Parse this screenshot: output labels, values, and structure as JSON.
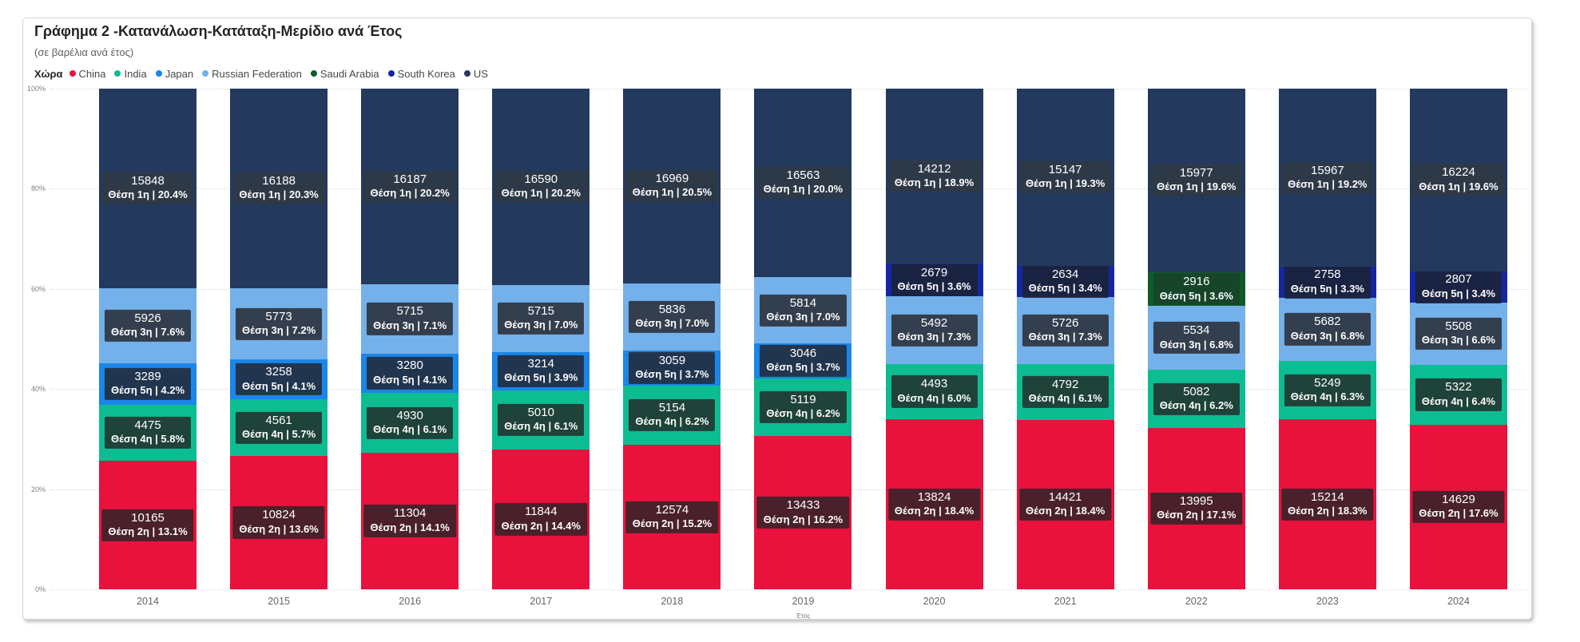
{
  "card": {
    "title": "Γράφημα 2 -Κατανάλωση-Κατάταξη-Μερίδιο ανά Έτος",
    "subtitle": "(σε βαρέλια ανά έτος)"
  },
  "legend": {
    "title": "Χώρα",
    "items": [
      {
        "name": "China",
        "color": "#E9123D"
      },
      {
        "name": "India",
        "color": "#0DBD92"
      },
      {
        "name": "Japan",
        "color": "#1A86E8"
      },
      {
        "name": "Russian Federation",
        "color": "#74B1EA"
      },
      {
        "name": "Saudi Arabia",
        "color": "#0E5C2A"
      },
      {
        "name": "South Korea",
        "color": "#1527A0"
      },
      {
        "name": "US",
        "color": "#233A5E"
      }
    ]
  },
  "series_styles": {
    "China": {
      "color": "#E9123D",
      "label_bg": "#4A202B"
    },
    "India": {
      "color": "#0DBD92",
      "label_bg": "#1F4239"
    },
    "Japan": {
      "color": "#1A86E8",
      "label_bg": "#21354F"
    },
    "Russian Federation": {
      "color": "#74B1EA",
      "label_bg": "#333E4E"
    },
    "Saudi Arabia": {
      "color": "#0E5C2A",
      "label_bg": "#17452A"
    },
    "South Korea": {
      "color": "#1527A0",
      "label_bg": "#1A2342"
    },
    "US": {
      "color": "#233A5E",
      "label_bg": "#2E3948"
    }
  },
  "axes": {
    "y_ticks": [
      {
        "label": "100%",
        "value": 100
      },
      {
        "label": "80%",
        "value": 80
      },
      {
        "label": "60%",
        "value": 60
      },
      {
        "label": "40%",
        "value": 40
      },
      {
        "label": "20%",
        "value": 20
      },
      {
        "label": "0%",
        "value": 0
      }
    ],
    "x_title": "Έτος"
  },
  "chart_data": {
    "type": "bar",
    "variant": "100%-stacked-column",
    "title": "Γράφημα 2 -Κατανάλωση-Κατάταξη-Μερίδιο ανά Έτος",
    "units_note": "σε βαρέλια ανά έτος",
    "legend_position": "top",
    "grid": "dotted-horizontal",
    "ylim": [
      "0%",
      "100%"
    ],
    "xlabel": "Έτος",
    "categories": [
      "2014",
      "2015",
      "2016",
      "2017",
      "2018",
      "2019",
      "2020",
      "2021",
      "2022",
      "2023",
      "2024"
    ],
    "segment_order": "bottom-to-top",
    "bars": [
      {
        "year": "2014",
        "segments": [
          {
            "country": "China",
            "value": 10165,
            "share": 13.1,
            "rank": "2η",
            "rank_share": "Θέση 2η | 13.1%"
          },
          {
            "country": "India",
            "value": 4475,
            "share": 5.8,
            "rank": "4η",
            "rank_share": "Θέση 4η | 5.8%"
          },
          {
            "country": "Japan",
            "value": 3289,
            "share": 4.2,
            "rank": "5η",
            "rank_share": "Θέση 5η | 4.2%"
          },
          {
            "country": "Russian Federation",
            "value": 5926,
            "share": 7.6,
            "rank": "3η",
            "rank_share": "Θέση 3η | 7.6%"
          },
          {
            "country": "US",
            "value": 15848,
            "share": 20.4,
            "rank": "1η",
            "rank_share": "Θέση 1η | 20.4%"
          }
        ]
      },
      {
        "year": "2015",
        "segments": [
          {
            "country": "China",
            "value": 10824,
            "share": 13.6,
            "rank": "2η",
            "rank_share": "Θέση 2η | 13.6%"
          },
          {
            "country": "India",
            "value": 4561,
            "share": 5.7,
            "rank": "4η",
            "rank_share": "Θέση 4η | 5.7%"
          },
          {
            "country": "Japan",
            "value": 3258,
            "share": 4.1,
            "rank": "5η",
            "rank_share": "Θέση 5η | 4.1%"
          },
          {
            "country": "Russian Federation",
            "value": 5773,
            "share": 7.2,
            "rank": "3η",
            "rank_share": "Θέση 3η | 7.2%"
          },
          {
            "country": "US",
            "value": 16188,
            "share": 20.3,
            "rank": "1η",
            "rank_share": "Θέση 1η | 20.3%"
          }
        ]
      },
      {
        "year": "2016",
        "segments": [
          {
            "country": "China",
            "value": 11304,
            "share": 14.1,
            "rank": "2η",
            "rank_share": "Θέση 2η | 14.1%"
          },
          {
            "country": "India",
            "value": 4930,
            "share": 6.1,
            "rank": "4η",
            "rank_share": "Θέση 4η | 6.1%"
          },
          {
            "country": "Japan",
            "value": 3280,
            "share": 4.1,
            "rank": "5η",
            "rank_share": "Θέση 5η | 4.1%"
          },
          {
            "country": "Russian Federation",
            "value": 5715,
            "share": 7.1,
            "rank": "3η",
            "rank_share": "Θέση 3η | 7.1%"
          },
          {
            "country": "US",
            "value": 16187,
            "share": 20.2,
            "rank": "1η",
            "rank_share": "Θέση 1η | 20.2%"
          }
        ]
      },
      {
        "year": "2017",
        "segments": [
          {
            "country": "China",
            "value": 11844,
            "share": 14.4,
            "rank": "2η",
            "rank_share": "Θέση 2η | 14.4%"
          },
          {
            "country": "India",
            "value": 5010,
            "share": 6.1,
            "rank": "4η",
            "rank_share": "Θέση 4η | 6.1%"
          },
          {
            "country": "Japan",
            "value": 3214,
            "share": 3.9,
            "rank": "5η",
            "rank_share": "Θέση 5η | 3.9%"
          },
          {
            "country": "Russian Federation",
            "value": 5715,
            "share": 7.0,
            "rank": "3η",
            "rank_share": "Θέση 3η | 7.0%"
          },
          {
            "country": "US",
            "value": 16590,
            "share": 20.2,
            "rank": "1η",
            "rank_share": "Θέση 1η | 20.2%"
          }
        ]
      },
      {
        "year": "2018",
        "segments": [
          {
            "country": "China",
            "value": 12574,
            "share": 15.2,
            "rank": "2η",
            "rank_share": "Θέση 2η | 15.2%"
          },
          {
            "country": "India",
            "value": 5154,
            "share": 6.2,
            "rank": "4η",
            "rank_share": "Θέση 4η | 6.2%"
          },
          {
            "country": "Japan",
            "value": 3059,
            "share": 3.7,
            "rank": "5η",
            "rank_share": "Θέση 5η | 3.7%"
          },
          {
            "country": "Russian Federation",
            "value": 5836,
            "share": 7.0,
            "rank": "3η",
            "rank_share": "Θέση 3η | 7.0%"
          },
          {
            "country": "US",
            "value": 16969,
            "share": 20.5,
            "rank": "1η",
            "rank_share": "Θέση 1η | 20.5%"
          }
        ]
      },
      {
        "year": "2019",
        "segments": [
          {
            "country": "China",
            "value": 13433,
            "share": 16.2,
            "rank": "2η",
            "rank_share": "Θέση 2η | 16.2%"
          },
          {
            "country": "India",
            "value": 5119,
            "share": 6.2,
            "rank": "4η",
            "rank_share": "Θέση 4η | 6.2%"
          },
          {
            "country": "Japan",
            "value": 3046,
            "share": 3.7,
            "rank": "5η",
            "rank_share": "Θέση 5η | 3.7%"
          },
          {
            "country": "Russian Federation",
            "value": 5814,
            "share": 7.0,
            "rank": "3η",
            "rank_share": "Θέση 3η | 7.0%"
          },
          {
            "country": "US",
            "value": 16563,
            "share": 20.0,
            "rank": "1η",
            "rank_share": "Θέση 1η | 20.0%"
          }
        ]
      },
      {
        "year": "2020",
        "segments": [
          {
            "country": "China",
            "value": 13824,
            "share": 18.4,
            "rank": "2η",
            "rank_share": "Θέση 2η | 18.4%"
          },
          {
            "country": "India",
            "value": 4493,
            "share": 6.0,
            "rank": "4η",
            "rank_share": "Θέση 4η | 6.0%"
          },
          {
            "country": "Russian Federation",
            "value": 5492,
            "share": 7.3,
            "rank": "3η",
            "rank_share": "Θέση 3η | 7.3%"
          },
          {
            "country": "South Korea",
            "value": 2679,
            "share": 3.6,
            "rank": "5η",
            "rank_share": "Θέση 5η | 3.6%"
          },
          {
            "country": "US",
            "value": 14212,
            "share": 18.9,
            "rank": "1η",
            "rank_share": "Θέση 1η | 18.9%"
          }
        ]
      },
      {
        "year": "2021",
        "segments": [
          {
            "country": "China",
            "value": 14421,
            "share": 18.4,
            "rank": "2η",
            "rank_share": "Θέση 2η | 18.4%"
          },
          {
            "country": "India",
            "value": 4792,
            "share": 6.1,
            "rank": "4η",
            "rank_share": "Θέση 4η | 6.1%"
          },
          {
            "country": "Russian Federation",
            "value": 5726,
            "share": 7.3,
            "rank": "3η",
            "rank_share": "Θέση 3η | 7.3%"
          },
          {
            "country": "South Korea",
            "value": 2634,
            "share": 3.4,
            "rank": "5η",
            "rank_share": "Θέση 5η | 3.4%"
          },
          {
            "country": "US",
            "value": 15147,
            "share": 19.3,
            "rank": "1η",
            "rank_share": "Θέση 1η | 19.3%"
          }
        ]
      },
      {
        "year": "2022",
        "segments": [
          {
            "country": "China",
            "value": 13995,
            "share": 17.1,
            "rank": "2η",
            "rank_share": "Θέση 2η | 17.1%"
          },
          {
            "country": "India",
            "value": 5082,
            "share": 6.2,
            "rank": "4η",
            "rank_share": "Θέση 4η | 6.2%"
          },
          {
            "country": "Russian Federation",
            "value": 5534,
            "share": 6.8,
            "rank": "3η",
            "rank_share": "Θέση 3η | 6.8%"
          },
          {
            "country": "Saudi Arabia",
            "value": 2916,
            "share": 3.6,
            "rank": "5η",
            "rank_share": "Θέση 5η | 3.6%"
          },
          {
            "country": "US",
            "value": 15977,
            "share": 19.6,
            "rank": "1η",
            "rank_share": "Θέση 1η | 19.6%"
          }
        ]
      },
      {
        "year": "2023",
        "segments": [
          {
            "country": "China",
            "value": 15214,
            "share": 18.3,
            "rank": "2η",
            "rank_share": "Θέση 2η | 18.3%"
          },
          {
            "country": "India",
            "value": 5249,
            "share": 6.3,
            "rank": "4η",
            "rank_share": "Θέση 4η | 6.3%"
          },
          {
            "country": "Russian Federation",
            "value": 5682,
            "share": 6.8,
            "rank": "3η",
            "rank_share": "Θέση 3η | 6.8%"
          },
          {
            "country": "South Korea",
            "value": 2758,
            "share": 3.3,
            "rank": "5η",
            "rank_share": "Θέση 5η | 3.3%"
          },
          {
            "country": "US",
            "value": 15967,
            "share": 19.2,
            "rank": "1η",
            "rank_share": "Θέση 1η | 19.2%"
          }
        ]
      },
      {
        "year": "2024",
        "segments": [
          {
            "country": "China",
            "value": 14629,
            "share": 17.6,
            "rank": "2η",
            "rank_share": "Θέση 2η | 17.6%"
          },
          {
            "country": "India",
            "value": 5322,
            "share": 6.4,
            "rank": "4η",
            "rank_share": "Θέση 4η | 6.4%"
          },
          {
            "country": "Russian Federation",
            "value": 5508,
            "share": 6.6,
            "rank": "3η",
            "rank_share": "Θέση 3η | 6.6%"
          },
          {
            "country": "South Korea",
            "value": 2807,
            "share": 3.4,
            "rank": "5η",
            "rank_share": "Θέση 5η | 3.4%"
          },
          {
            "country": "US",
            "value": 16224,
            "share": 19.6,
            "rank": "1η",
            "rank_share": "Θέση 1η | 19.6%"
          }
        ]
      }
    ]
  }
}
